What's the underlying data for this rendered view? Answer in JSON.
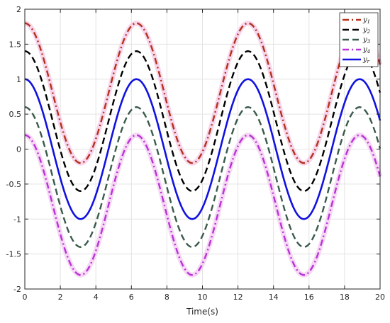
{
  "chart_data": {
    "type": "line",
    "title": "",
    "xlabel": "Time(s)",
    "ylabel": "",
    "xlim": [
      0,
      20
    ],
    "ylim": [
      -2,
      2
    ],
    "xticks": [
      0,
      2,
      4,
      6,
      8,
      10,
      12,
      14,
      16,
      18,
      20
    ],
    "yticks": [
      -2,
      -1.5,
      -1,
      -0.5,
      0,
      0.5,
      1,
      1.5,
      2
    ],
    "xtick_labels": [
      "0",
      "2",
      "4",
      "6",
      "8",
      "10",
      "12",
      "14",
      "16",
      "18",
      "20"
    ],
    "ytick_labels": [
      "-2",
      "-1.5",
      "-1",
      "-0.5",
      "0",
      "0.5",
      "1",
      "1.5",
      "2"
    ],
    "grid": true,
    "legend_position": "top-right",
    "series": [
      {
        "name": "y1",
        "sub": "1",
        "color": "#b5311a",
        "style": "dashdot",
        "offset": 0.8
      },
      {
        "name": "y2",
        "sub": "2",
        "color": "#000000",
        "style": "dashed",
        "offset": 0.4
      },
      {
        "name": "y3",
        "sub": "3",
        "color": "#3a5a4a",
        "style": "dashed",
        "offset": -0.4
      },
      {
        "name": "y4",
        "sub": "4",
        "color": "#b832d8",
        "style": "dashdot",
        "offset": -0.8
      },
      {
        "name": "yr",
        "sub": "r",
        "color": "#1212e0",
        "style": "solid",
        "offset": 0
      }
    ],
    "reference_signal": "cos(t)",
    "x_samples": [
      0,
      1.57,
      3.14,
      4.71,
      6.28,
      7.85,
      9.42,
      11.0,
      12.57,
      14.14,
      15.71,
      17.28,
      18.85,
      20
    ],
    "yr_values": [
      1,
      0,
      -1,
      0,
      1,
      0,
      -1,
      0,
      1,
      0,
      -1,
      0,
      1,
      0.41
    ]
  }
}
